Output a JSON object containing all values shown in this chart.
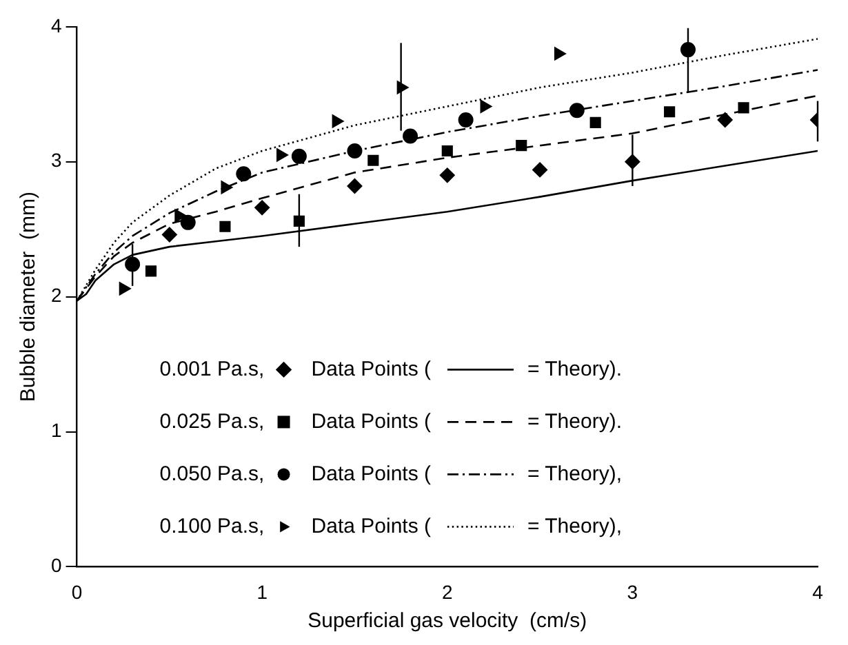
{
  "chart_data": {
    "type": "scatter",
    "xlabel": "Superficial gas velocity  (cm/s)",
    "ylabel": "Bubble diameter  (mm)",
    "xlim": [
      0,
      4
    ],
    "xticks": [
      0,
      1,
      2,
      3,
      4
    ],
    "ylim": [
      0,
      4
    ],
    "yticks": [
      0,
      1,
      2,
      3,
      4
    ],
    "grid": false,
    "legend": "bottom",
    "annotations": [
      "0.001 Pa.s,",
      "0.025 Pa.s,",
      "0.050 Pa.s,",
      "0.100 Pa.s,"
    ],
    "series": [
      {
        "name": "Data Points (",
        "type": "scatter",
        "marker": "diamond",
        "color": "#000000",
        "x": [
          0.5,
          1.0,
          1.5,
          2.0,
          2.5,
          3.0,
          3.5,
          4.0
        ],
        "values": [
          2.46,
          2.66,
          2.82,
          2.9,
          2.94,
          3.0,
          3.31,
          3.31
        ],
        "errors": [
          null,
          null,
          null,
          null,
          null,
          [
            2.82,
            3.2
          ],
          null,
          [
            3.15,
            3.45
          ]
        ]
      },
      {
        "name": "Data Points (",
        "type": "scatter",
        "marker": "square",
        "color": "#000000",
        "x": [
          0.4,
          0.8,
          1.2,
          1.6,
          2.0,
          2.4,
          2.8,
          3.2,
          3.6
        ],
        "values": [
          2.19,
          2.52,
          2.56,
          3.01,
          3.08,
          3.12,
          3.29,
          3.37,
          3.4
        ],
        "errors": [
          null,
          null,
          [
            2.37,
            2.76
          ],
          null,
          null,
          null,
          null,
          null,
          null
        ]
      },
      {
        "name": "Data Points (",
        "type": "scatter",
        "marker": "circle",
        "color": "#000000",
        "x": [
          0.3,
          0.6,
          0.9,
          1.2,
          1.5,
          1.8,
          2.1,
          2.7,
          3.3
        ],
        "values": [
          2.24,
          2.55,
          2.91,
          3.04,
          3.08,
          3.19,
          3.31,
          3.38,
          3.83
        ],
        "errors": [
          [
            2.08,
            2.39
          ],
          null,
          null,
          null,
          null,
          null,
          null,
          null,
          [
            3.51,
            3.99
          ]
        ]
      },
      {
        "name": "Data Points (",
        "type": "scatter",
        "marker": "triangle",
        "color": "#000000",
        "x": [
          0.25,
          0.55,
          0.8,
          1.1,
          1.4,
          1.75,
          2.2,
          2.6
        ],
        "values": [
          2.06,
          2.6,
          2.81,
          3.05,
          3.3,
          3.55,
          3.41,
          3.8
        ],
        "errors": [
          null,
          null,
          null,
          null,
          null,
          [
            3.23,
            3.88
          ],
          null,
          null
        ]
      },
      {
        "name": "= Theory).",
        "type": "line",
        "marker": "none",
        "line_style": "solid",
        "color": "#000000",
        "x": [
          0,
          0.05,
          0.1,
          0.2,
          0.3,
          0.5,
          0.75,
          1,
          1.5,
          2,
          2.5,
          3,
          3.5,
          4
        ],
        "values": [
          1.97,
          2.02,
          2.12,
          2.24,
          2.31,
          2.37,
          2.41,
          2.45,
          2.54,
          2.63,
          2.74,
          2.86,
          2.97,
          3.08
        ]
      },
      {
        "name": "= Theory).",
        "type": "line",
        "marker": "none",
        "line_style": "dashed",
        "color": "#000000",
        "x": [
          0,
          0.1,
          0.2,
          0.3,
          0.5,
          0.75,
          1,
          1.5,
          2,
          2.5,
          3,
          3.5,
          4
        ],
        "values": [
          1.97,
          2.15,
          2.3,
          2.4,
          2.54,
          2.63,
          2.73,
          2.92,
          3.03,
          3.12,
          3.21,
          3.35,
          3.49
        ]
      },
      {
        "name": "= Theory),",
        "type": "line",
        "marker": "none",
        "line_style": "dashdot",
        "color": "#000000",
        "x": [
          0,
          0.1,
          0.2,
          0.3,
          0.5,
          0.75,
          1,
          1.5,
          2,
          2.5,
          3,
          3.5,
          4
        ],
        "values": [
          1.97,
          2.17,
          2.33,
          2.45,
          2.62,
          2.78,
          2.92,
          3.08,
          3.22,
          3.34,
          3.45,
          3.56,
          3.68
        ]
      },
      {
        "name": "= Theory),",
        "type": "line",
        "marker": "none",
        "line_style": "dotted",
        "color": "#000000",
        "x": [
          0,
          0.1,
          0.2,
          0.3,
          0.5,
          0.75,
          1,
          1.5,
          2,
          2.5,
          3,
          3.5,
          4
        ],
        "values": [
          1.97,
          2.2,
          2.4,
          2.55,
          2.75,
          2.95,
          3.08,
          3.27,
          3.41,
          3.55,
          3.66,
          3.79,
          3.91
        ]
      }
    ]
  }
}
